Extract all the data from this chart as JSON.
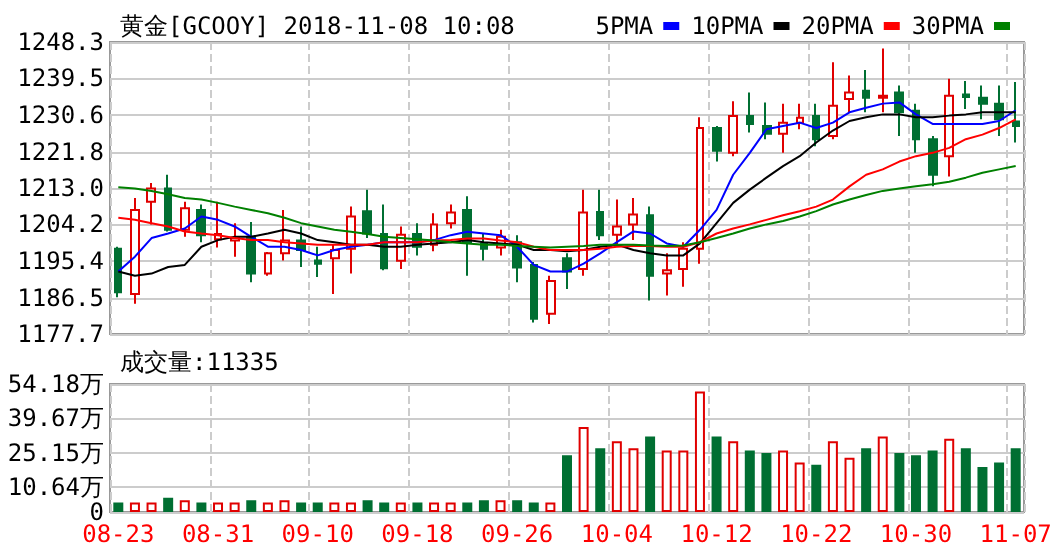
{
  "chart_data": [
    {
      "type": "candlestick",
      "title": "黄金[GCOOY] 2018-11-08 10:08",
      "categories": [
        null,
        null,
        null,
        null,
        null,
        null,
        null,
        null,
        null,
        null,
        null,
        null,
        null,
        null,
        null,
        null,
        null,
        null,
        null,
        null,
        null,
        null,
        null,
        null,
        null,
        null,
        null,
        null,
        null,
        null,
        null,
        null,
        null,
        null,
        null,
        null,
        null,
        null,
        null,
        null,
        null,
        null,
        null,
        null,
        null,
        null,
        null,
        null,
        null,
        null,
        null,
        null,
        null,
        null,
        null
      ],
      "ylim": [
        1177.7,
        1248.3
      ],
      "yticks": [
        1177.7,
        1186.5,
        1195.4,
        1204.2,
        {
          "value": 1213,
          "label": "1213.0"
        },
        1221.8,
        1230.6,
        1239.5,
        1248.3
      ],
      "grid": true,
      "legend": "top right",
      "tick_labels": "y",
      "series": [
        {
          "ohlc": [
            [
              1198.3,
              1198.8,
              1186.6,
              1187.8
            ],
            [
              1187.4,
              1210.6,
              1185.0,
              1207.7
            ],
            [
              1209.7,
              1214.2,
              1204.2,
              1212.9
            ],
            [
              1212.9,
              1216.2,
              1202.5,
              1202.9
            ],
            [
              1202.9,
              1209.7,
              1201.2,
              1208.1
            ],
            [
              1207.7,
              1209.0,
              1199.9,
              1201.6
            ],
            [
              1200.6,
              1209.7,
              1198.6,
              1201.9
            ],
            [
              1200.3,
              1204.5,
              1196.4,
              1200.9
            ],
            [
              1201.2,
              1204.8,
              1190.2,
              1192.3
            ],
            [
              1192.3,
              1197.5,
              1191.8,
              1197.2
            ],
            [
              1197.2,
              1207.7,
              1195.5,
              1200.3
            ],
            [
              1200.3,
              1203.7,
              1193.9,
              1198.0
            ],
            [
              1195.5,
              1198.8,
              1191.5,
              1194.7
            ],
            [
              1196.0,
              1199.3,
              1187.4,
              1198.0
            ],
            [
              1198.3,
              1208.5,
              1192.3,
              1206.1
            ],
            [
              1207.4,
              1212.6,
              1200.9,
              1202.0
            ],
            [
              1201.9,
              1209.0,
              1193.1,
              1193.6
            ],
            [
              1195.4,
              1203.7,
              1193.4,
              1201.7
            ],
            [
              1201.9,
              1204.5,
              1196.7,
              1198.8
            ],
            [
              1199.3,
              1206.9,
              1197.7,
              1204.2
            ],
            [
              1204.5,
              1209.0,
              1203.2,
              1207.1
            ],
            [
              1207.7,
              1211.0,
              1191.8,
              1199.9
            ],
            [
              1199.6,
              1202.0,
              1195.5,
              1198.3
            ],
            [
              1198.6,
              1202.9,
              1196.7,
              1201.2
            ],
            [
              1199.9,
              1201.6,
              1190.2,
              1193.8
            ],
            [
              1194.4,
              1195.1,
              1180.5,
              1181.4
            ],
            [
              1182.6,
              1191.8,
              1180.1,
              1190.5
            ],
            [
              1196.0,
              1197.2,
              1188.6,
              1192.8
            ],
            [
              1193.4,
              1212.6,
              1191.8,
              1207.1
            ],
            [
              1207.2,
              1212.6,
              1200.4,
              1201.6
            ],
            [
              1201.7,
              1210.2,
              1198.8,
              1203.7
            ],
            [
              1204.2,
              1210.6,
              1200.4,
              1206.6
            ],
            [
              1206.4,
              1208.5,
              1185.8,
              1191.8
            ],
            [
              1192.3,
              1197.2,
              1187.0,
              1193.1
            ],
            [
              1193.4,
              1199.9,
              1189.1,
              1198.3
            ],
            [
              1198.3,
              1230.1,
              1194.7,
              1227.5
            ],
            [
              1227.5,
              1228.0,
              1219.4,
              1222.0
            ],
            [
              1221.5,
              1234.0,
              1220.7,
              1230.4
            ],
            [
              1230.4,
              1236.1,
              1226.4,
              1228.5
            ],
            [
              1228.0,
              1233.7,
              1224.8,
              1226.1
            ],
            [
              1226.1,
              1233.4,
              1221.5,
              1228.8
            ],
            [
              1228.8,
              1233.4,
              1227.2,
              1230.0
            ],
            [
              1230.4,
              1233.4,
              1223.1,
              1224.8
            ],
            [
              1225.6,
              1243.4,
              1224.8,
              1232.9
            ],
            [
              1234.5,
              1240.2,
              1231.3,
              1236.1
            ],
            [
              1236.5,
              1241.5,
              1231.3,
              1234.8
            ],
            [
              1234.8,
              1246.7,
              1231.3,
              1235.3
            ],
            [
              1236.1,
              1237.8,
              1225.6,
              1231.3
            ],
            [
              1231.7,
              1233.4,
              1221.5,
              1224.8
            ],
            [
              1224.8,
              1225.6,
              1213.4,
              1216.2
            ],
            [
              1220.7,
              1239.4,
              1215.8,
              1235.3
            ],
            [
              1235.6,
              1238.9,
              1232.1,
              1235.0
            ],
            [
              1234.8,
              1237.8,
              1229.6,
              1233.4
            ],
            [
              1233.4,
              1237.8,
              1225.6,
              1229.6
            ],
            [
              1229.1,
              1238.6,
              1224.0,
              1228.0
            ]
          ],
          "colors": [
            "#006f32",
            "#e00000",
            "#e00000",
            "#006f32",
            "#e00000",
            "#006f32",
            "#e00000",
            "#e00000",
            "#006f32",
            "#e00000",
            "#e00000",
            "#006f32",
            "#006f32",
            "#e00000",
            "#e00000",
            "#006f32",
            "#006f32",
            "#e00000",
            "#006f32",
            "#e00000",
            "#e00000",
            "#006f32",
            "#006f32",
            "#e00000",
            "#006f32",
            "#006f32",
            "#e00000",
            "#006f32",
            "#e00000",
            "#006f32",
            "#e00000",
            "#e00000",
            "#006f32",
            "#e00000",
            "#e00000",
            "#e00000",
            "#006f32",
            "#e00000",
            "#006f32",
            "#006f32",
            "#e00000",
            "#e00000",
            "#006f32",
            "#e00000",
            "#e00000",
            "#006f32",
            "#e00000",
            "#006f32",
            "#006f32",
            "#006f32",
            "#e00000",
            "#006f32",
            "#006f32",
            "#006f32",
            "#006f32"
          ]
        },
        {
          "type": "line",
          "name": "5PMA",
          "color": "#0000ff",
          "values": [
            1192.8,
            1196.4,
            1200.9,
            1202.0,
            1203.2,
            1206.1,
            1205.3,
            1203.7,
            1201.2,
            1198.8,
            1198.8,
            1198.0,
            1196.7,
            1198.0,
            1198.8,
            1199.3,
            1199.9,
            1199.9,
            1199.9,
            1200.4,
            1201.6,
            1202.4,
            1202.0,
            1201.6,
            1198.8,
            1194.4,
            1192.8,
            1192.8,
            1194.7,
            1197.2,
            1199.9,
            1202.5,
            1202.0,
            1199.6,
            1198.8,
            1202.9,
            1207.7,
            1216.2,
            1221.5,
            1227.2,
            1228.0,
            1228.8,
            1227.5,
            1228.8,
            1231.3,
            1232.4,
            1233.4,
            1233.7,
            1230.8,
            1228.5,
            1228.5,
            1228.5,
            1228.5,
            1229.2,
            1231.8
          ]
        },
        {
          "type": "line",
          "name": "10PMA",
          "color": "#000000",
          "values": [
            1192.8,
            1191.8,
            1192.3,
            1193.9,
            1194.4,
            1198.8,
            1200.4,
            1201.2,
            1201.2,
            1202.0,
            1202.9,
            1202.0,
            1200.4,
            1199.9,
            1199.3,
            1199.3,
            1198.8,
            1198.8,
            1199.3,
            1199.6,
            1199.9,
            1200.4,
            1199.9,
            1199.6,
            1199.3,
            1198.0,
            1198.0,
            1197.7,
            1198.0,
            1198.8,
            1199.3,
            1198.0,
            1197.2,
            1196.7,
            1196.7,
            1199.6,
            1204.5,
            1209.4,
            1212.6,
            1215.5,
            1218.3,
            1220.7,
            1224.0,
            1226.9,
            1229.2,
            1230.1,
            1230.8,
            1230.8,
            1230.1,
            1230.1,
            1230.5,
            1230.8,
            1231.3,
            1231.3,
            1231.3
          ]
        },
        {
          "type": "line",
          "name": "20PMA",
          "color": "#ff0000",
          "values": [
            1205.8,
            1205.3,
            1204.5,
            1203.7,
            1202.5,
            1202.0,
            1201.6,
            1200.9,
            1200.4,
            1200.4,
            1199.9,
            1199.6,
            1199.3,
            1199.3,
            1199.3,
            1199.3,
            1199.9,
            1199.9,
            1199.9,
            1200.3,
            1200.4,
            1200.8,
            1200.8,
            1200.3,
            1199.9,
            1198.8,
            1198.0,
            1198.0,
            1198.0,
            1198.3,
            1198.8,
            1199.0,
            1199.0,
            1198.8,
            1198.8,
            1199.9,
            1202.0,
            1203.2,
            1204.2,
            1205.3,
            1206.4,
            1207.4,
            1208.5,
            1210.2,
            1213.4,
            1216.2,
            1217.5,
            1219.4,
            1220.7,
            1221.5,
            1222.7,
            1224.8,
            1225.9,
            1227.5,
            1229.6
          ]
        },
        {
          "type": "line",
          "name": "30PMA",
          "color": "#008000",
          "values": [
            1213.2,
            1212.9,
            1212.3,
            1211.5,
            1210.6,
            1210.2,
            1209.4,
            1208.5,
            1207.7,
            1206.9,
            1205.8,
            1204.5,
            1203.7,
            1202.9,
            1202.4,
            1201.9,
            1201.2,
            1200.9,
            1200.6,
            1200.3,
            1199.9,
            1199.6,
            1199.3,
            1199.3,
            1199.0,
            1198.8,
            1198.6,
            1198.8,
            1199.0,
            1199.3,
            1199.3,
            1199.3,
            1199.1,
            1199.0,
            1199.1,
            1199.9,
            1200.9,
            1202.0,
            1203.2,
            1204.2,
            1205.0,
            1206.1,
            1207.4,
            1209.0,
            1210.2,
            1211.3,
            1212.3,
            1212.9,
            1213.4,
            1213.9,
            1214.5,
            1215.5,
            1216.7,
            1217.5,
            1218.3
          ]
        }
      ]
    },
    {
      "type": "bar",
      "title": "成交量:11335",
      "categories": [
        "08-23",
        null,
        null,
        null,
        null,
        null,
        "08-31",
        null,
        null,
        null,
        null,
        null,
        "09-10",
        null,
        null,
        null,
        null,
        null,
        "09-18",
        null,
        null,
        null,
        null,
        null,
        "09-26",
        null,
        null,
        null,
        null,
        null,
        "10-04",
        null,
        null,
        null,
        null,
        null,
        "10-12",
        null,
        null,
        null,
        null,
        null,
        "10-22",
        null,
        null,
        null,
        null,
        null,
        "10-30",
        null,
        null,
        null,
        null,
        null,
        "11-07"
      ],
      "ylim": [
        0,
        54.18
      ],
      "yticks": [
        0,
        {
          "value": 10.64,
          "label": "10.64万"
        },
        {
          "value": 25.15,
          "label": "25.15万"
        },
        {
          "value": 39.67,
          "label": "39.67万"
        },
        {
          "value": 54.18,
          "label": "54.18万"
        }
      ],
      "grid": true,
      "values": [
        4,
        4,
        4,
        6,
        5,
        4,
        4,
        4,
        5,
        4,
        5,
        4,
        4,
        4,
        4,
        5,
        4,
        4,
        4,
        4,
        4,
        4,
        5,
        5,
        5,
        4,
        4,
        24,
        36,
        27,
        30,
        27,
        32,
        26,
        26,
        51,
        32,
        30,
        26,
        25,
        26,
        21,
        20,
        30,
        23,
        27,
        32,
        25,
        24,
        26,
        31,
        27,
        19,
        21,
        27
      ],
      "colors": [
        "#006f32",
        "#e00000",
        "#e00000",
        "#006f32",
        "#e00000",
        "#006f32",
        "#e00000",
        "#e00000",
        "#006f32",
        "#e00000",
        "#e00000",
        "#006f32",
        "#006f32",
        "#e00000",
        "#e00000",
        "#006f32",
        "#006f32",
        "#e00000",
        "#006f32",
        "#e00000",
        "#e00000",
        "#006f32",
        "#006f32",
        "#e00000",
        "#006f32",
        "#006f32",
        "#e00000",
        "#006f32",
        "#e00000",
        "#006f32",
        "#e00000",
        "#e00000",
        "#006f32",
        "#e00000",
        "#e00000",
        "#e00000",
        "#006f32",
        "#e00000",
        "#006f32",
        "#006f32",
        "#e00000",
        "#e00000",
        "#006f32",
        "#e00000",
        "#e00000",
        "#006f32",
        "#e00000",
        "#006f32",
        "#006f32",
        "#006f32",
        "#e00000",
        "#006f32",
        "#006f32",
        "#006f32",
        "#006f32"
      ]
    }
  ]
}
